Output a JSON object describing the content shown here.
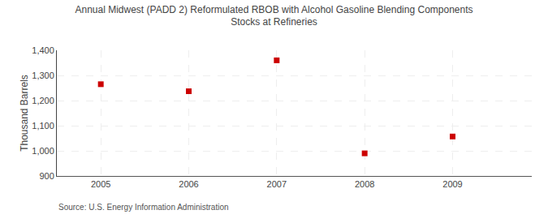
{
  "chart_data": {
    "type": "scatter",
    "title": "Annual Midwest (PADD 2) Reformulated RBOB with Alcohol Gasoline Blending Components\nStocks at Refineries",
    "ylabel": "Thousand Barrels",
    "x": [
      2005,
      2006,
      2007,
      2008,
      2009
    ],
    "values": [
      1265,
      1237,
      1360,
      990,
      1057
    ],
    "color": "#cc0000",
    "marker": "square",
    "xlim": [
      2004.5,
      2009.9
    ],
    "xticks": [
      2005,
      2006,
      2007,
      2008,
      2009
    ],
    "ylim": [
      900,
      1400
    ],
    "yticks": [
      900,
      {
        "value": 1000,
        "label": "1,000"
      },
      {
        "value": 1100,
        "label": "1,100"
      },
      {
        "value": 1200,
        "label": "1,200"
      },
      {
        "value": 1300,
        "label": "1,300"
      },
      {
        "value": 1400,
        "label": "1,400"
      }
    ],
    "grid": true,
    "annotations": [
      "Source: U.S. Energy Information Administration"
    ]
  }
}
